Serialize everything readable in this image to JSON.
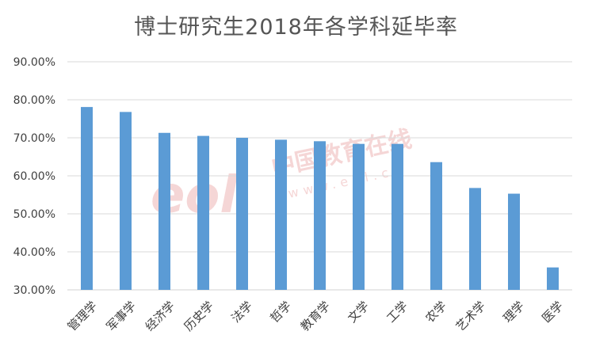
{
  "chart_data": {
    "type": "bar",
    "title": "博士研究生2018年各学科延毕率",
    "categories": [
      "管理学",
      "军事学",
      "经济学",
      "历史学",
      "法学",
      "哲学",
      "教育学",
      "文学",
      "工学",
      "农学",
      "艺术学",
      "理学",
      "医学"
    ],
    "values": [
      78.1,
      76.8,
      71.3,
      70.5,
      70.0,
      69.5,
      69.1,
      68.4,
      68.4,
      63.6,
      56.8,
      55.3,
      35.9
    ],
    "y_ticks": [
      "30.00%",
      "40.00%",
      "50.00%",
      "60.00%",
      "70.00%",
      "80.00%",
      "90.00%"
    ],
    "ylim": [
      30,
      90
    ],
    "grid": true,
    "legend": "none",
    "bar_color": "#5B9BD5",
    "grid_color": "#D9D9D9"
  },
  "watermark": {
    "logo_text": "eol",
    "cn_text": "中国教育在线",
    "url_text": "www.eol.cn",
    "color": "#E8B8B8"
  }
}
